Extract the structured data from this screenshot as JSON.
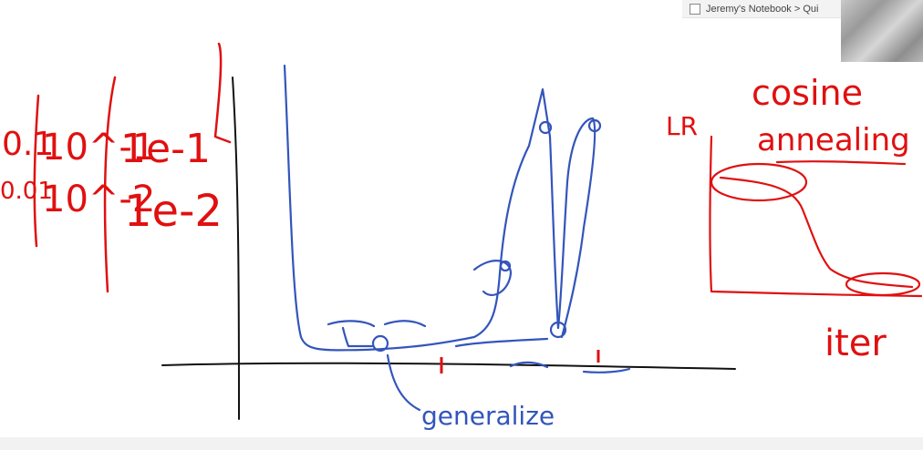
{
  "breadcrumb": "Jeremy's Notebook > Qui",
  "colors": {
    "ink_red": "#e01010",
    "ink_blue": "#3355bb",
    "ink_black": "#111111"
  },
  "ink": {
    "lr_values_left": [
      "0.1",
      "0.01"
    ],
    "lr_values_mid": [
      "10^-1",
      "10^-2"
    ],
    "lr_values_right": [
      "1e-1",
      "1e-2"
    ],
    "small_mark": "L",
    "generalize": "generalize",
    "lr_axis": "LR",
    "cosine": "cosine",
    "annealing": "annealing",
    "iter": "iter"
  }
}
